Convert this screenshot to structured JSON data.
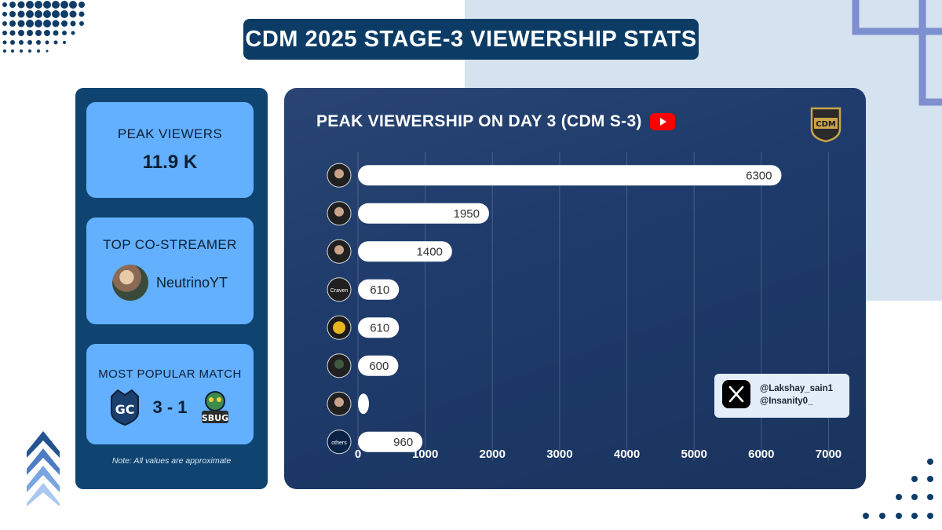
{
  "header": {
    "title": "CDM 2025 STAGE-3 VIEWERSHIP STATS"
  },
  "stats": {
    "peak_label": "PEAK VIEWERS",
    "peak_value": "11.9 K",
    "costreamer_label": "TOP CO-STREAMER",
    "costreamer_name": "NeutrinoYT",
    "match_label": "MOST POPULAR MATCH",
    "match_score": "3 - 1",
    "note": "Note: All values are approximate"
  },
  "colors": {
    "title_banner": "#0c3c66",
    "left_panel": "#0f4470",
    "card": "#62b0ff",
    "chart_bg": "#1e3b6b",
    "bar": "#ffffff",
    "accent_dots": "#0f3d68",
    "youtube_red": "#ff0000"
  },
  "chart_data": {
    "type": "bar",
    "orientation": "horizontal",
    "title": "PEAK VIEWERSHIP ON DAY 3 (CDM S-3)",
    "categories": [
      "",
      "",
      "",
      "Craven",
      "",
      "",
      "",
      "others"
    ],
    "values": [
      6300,
      1950,
      1400,
      610,
      610,
      600,
      150,
      960
    ],
    "bar_labels": [
      "6300",
      "1950",
      "1400",
      "610",
      "610",
      "600",
      "",
      "960"
    ],
    "xlim": [
      0,
      7000
    ],
    "xticks": [
      "0",
      "1000",
      "2000",
      "3000",
      "4000",
      "5000",
      "6000",
      "7000"
    ],
    "grid": true,
    "xlabel": "",
    "ylabel": ""
  },
  "credits": {
    "handle1": "@Lakshay_sain1",
    "handle2": "@Insanity0_"
  },
  "icons": {
    "youtube": "youtube-icon",
    "x": "x-logo-icon",
    "team_left": "gc-team-logo",
    "team_right": "sbug-team-logo"
  }
}
